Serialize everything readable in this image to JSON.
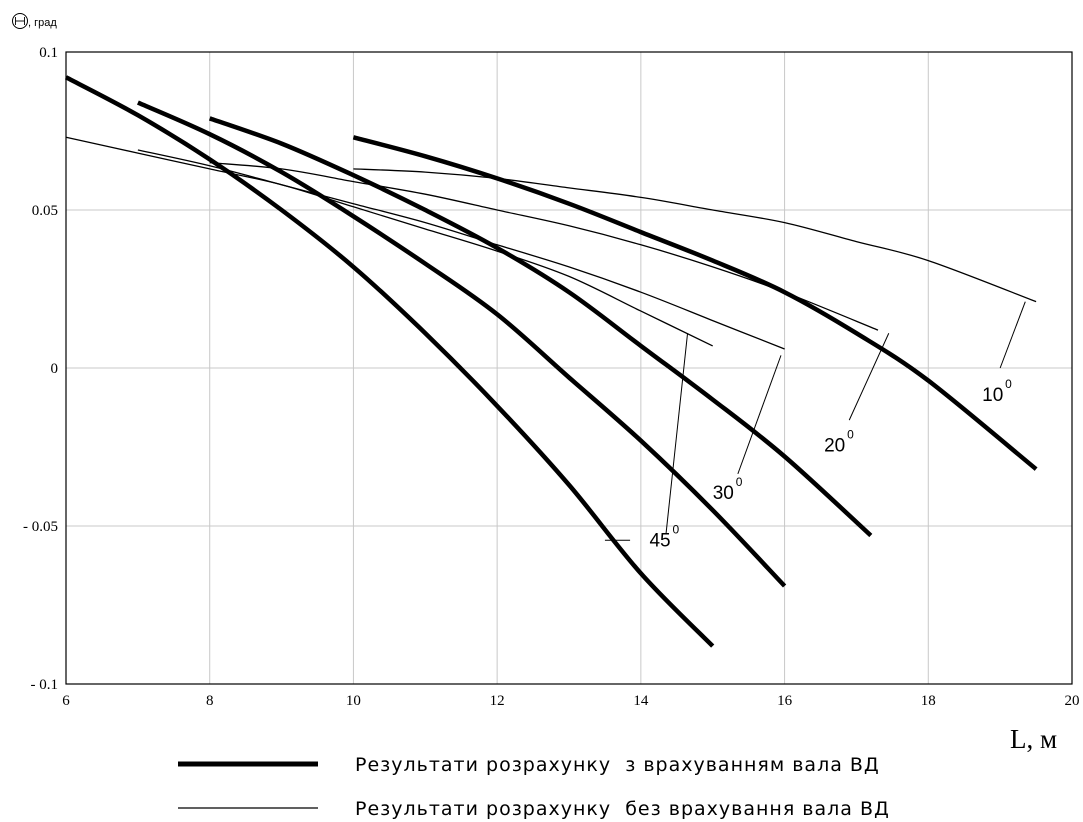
{
  "chart_data": {
    "type": "line",
    "ylabel_unit": ", град",
    "xlabel": "L, м",
    "xlim": [
      6,
      20
    ],
    "ylim": [
      -0.1,
      0.1
    ],
    "x_ticks": [
      6,
      8,
      10,
      12,
      14,
      16,
      18,
      20
    ],
    "y_ticks": [
      {
        "value": 0.1,
        "label": "0.1"
      },
      {
        "value": 0.05,
        "label": "0.05"
      },
      {
        "value": 0,
        "label": "0"
      },
      {
        "value": -0.05,
        "label": "- 0.05"
      },
      {
        "value": -0.1,
        "label": "- 0.1"
      }
    ],
    "grid": true,
    "series": [
      {
        "group": "with_shaft",
        "angle": "45",
        "x": [
          6,
          7,
          8,
          9,
          10,
          11,
          12,
          13,
          14,
          15
        ],
        "y": [
          0.092,
          0.08,
          0.066,
          0.05,
          0.032,
          0.011,
          -0.012,
          -0.037,
          -0.065,
          -0.088
        ]
      },
      {
        "group": "with_shaft",
        "angle": "30",
        "x": [
          7,
          8,
          9,
          10,
          11,
          12,
          13,
          14,
          15,
          16
        ],
        "y": [
          0.084,
          0.074,
          0.062,
          0.048,
          0.033,
          0.017,
          -0.003,
          -0.023,
          -0.045,
          -0.069
        ]
      },
      {
        "group": "with_shaft",
        "angle": "20",
        "x": [
          8,
          9,
          10,
          11,
          12,
          13,
          14,
          15,
          16,
          17.2
        ],
        "y": [
          0.079,
          0.071,
          0.061,
          0.05,
          0.038,
          0.024,
          0.007,
          -0.01,
          -0.028,
          -0.053
        ]
      },
      {
        "group": "with_shaft",
        "angle": "10",
        "x": [
          10,
          11,
          12,
          13,
          14,
          15,
          16,
          17,
          18,
          19.5
        ],
        "y": [
          0.073,
          0.067,
          0.06,
          0.052,
          0.043,
          0.034,
          0.024,
          0.011,
          -0.004,
          -0.032
        ]
      },
      {
        "group": "without_shaft",
        "angle": "45",
        "x": [
          6,
          7,
          8,
          9,
          10,
          11,
          12,
          13,
          14,
          15
        ],
        "y": [
          0.073,
          0.068,
          0.063,
          0.058,
          0.051,
          0.044,
          0.037,
          0.029,
          0.018,
          0.007
        ]
      },
      {
        "group": "without_shaft",
        "angle": "30",
        "x": [
          7,
          8,
          9,
          10,
          11,
          12,
          13,
          14,
          15,
          16
        ],
        "y": [
          0.069,
          0.064,
          0.058,
          0.052,
          0.046,
          0.039,
          0.032,
          0.024,
          0.015,
          0.006
        ]
      },
      {
        "group": "without_shaft",
        "angle": "20",
        "x": [
          8,
          9,
          10,
          11,
          12,
          13,
          14,
          15,
          16,
          17.3
        ],
        "y": [
          0.065,
          0.063,
          0.059,
          0.055,
          0.05,
          0.045,
          0.039,
          0.032,
          0.024,
          0.012
        ]
      },
      {
        "group": "without_shaft",
        "angle": "10",
        "x": [
          10,
          11,
          12,
          13,
          14,
          15,
          16,
          17,
          18,
          19.5
        ],
        "y": [
          0.063,
          0.062,
          0.06,
          0.057,
          0.054,
          0.05,
          0.046,
          0.04,
          0.034,
          0.021
        ]
      }
    ],
    "annotations": [
      {
        "text": "45",
        "sup": "0",
        "x": 14.12,
        "y": -0.0565,
        "leaders": [
          [
            13.85,
            -0.0545,
            13.5,
            -0.0545
          ],
          [
            14.35,
            -0.0525,
            14.65,
            0.011
          ]
        ]
      },
      {
        "text": "30",
        "sup": "0",
        "x": 15.0,
        "y": -0.0415,
        "leaders": [
          [
            15.35,
            -0.0335,
            15.95,
            0.004
          ]
        ]
      },
      {
        "text": "20",
        "sup": "0",
        "x": 16.55,
        "y": -0.0265,
        "leaders": [
          [
            16.9,
            -0.0165,
            17.45,
            0.011
          ]
        ]
      },
      {
        "text": "10",
        "sup": "0",
        "x": 18.75,
        "y": -0.0105,
        "leaders": [
          [
            19.0,
            0.0,
            19.35,
            0.021
          ]
        ]
      }
    ],
    "legend": {
      "placement": "bottom",
      "entries": [
        {
          "style": "thick",
          "label": "Результати розрахунку  з врахуванням вала ВД"
        },
        {
          "style": "thin",
          "label": "Результати розрахунку  без врахування вала ВД"
        }
      ]
    },
    "colors": {
      "line": "#000000",
      "grid": "#c8c8c8",
      "frame": "#000000"
    }
  }
}
